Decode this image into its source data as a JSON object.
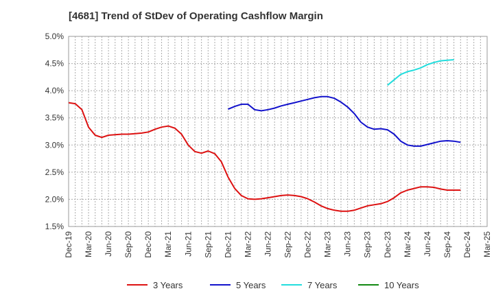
{
  "title": "[4681]  Trend of StDev of Operating Cashflow Margin",
  "chart_data": {
    "type": "line",
    "title": "[4681]  Trend of StDev of Operating Cashflow Margin",
    "xlabel": "",
    "ylabel": "",
    "ylim": [
      1.5,
      5.0
    ],
    "y_ticks": [
      "1.5%",
      "2.0%",
      "2.5%",
      "3.0%",
      "3.5%",
      "4.0%",
      "4.5%",
      "5.0%"
    ],
    "x_ticks": [
      "Dec-19",
      "Mar-20",
      "Jun-20",
      "Sep-20",
      "Dec-20",
      "Mar-21",
      "Jun-21",
      "Sep-21",
      "Dec-21",
      "Mar-22",
      "Jun-22",
      "Sep-22",
      "Dec-22",
      "Mar-23",
      "Jun-23",
      "Sep-23",
      "Dec-23",
      "Mar-24",
      "Jun-24",
      "Sep-24",
      "Dec-24",
      "Mar-25"
    ],
    "x_range_months": [
      "Dec-19",
      "Mar-25"
    ],
    "grid": true,
    "legend_position": "bottom",
    "colors": {
      "3 Years": "#dd1111",
      "5 Years": "#1111cc",
      "7 Years": "#22dddd",
      "10 Years": "#118811"
    },
    "series": [
      {
        "name": "3 Years",
        "color": "#dd1111",
        "start": "Dec-19",
        "values": [
          3.78,
          3.76,
          3.65,
          3.33,
          3.18,
          3.14,
          3.18,
          3.19,
          3.2,
          3.2,
          3.21,
          3.22,
          3.24,
          3.29,
          3.33,
          3.35,
          3.31,
          3.2,
          3.0,
          2.88,
          2.85,
          2.89,
          2.84,
          2.69,
          2.41,
          2.2,
          2.07,
          2.01,
          2.0,
          2.01,
          2.03,
          2.05,
          2.07,
          2.08,
          2.07,
          2.05,
          2.01,
          1.95,
          1.88,
          1.83,
          1.8,
          1.78,
          1.78,
          1.8,
          1.84,
          1.88,
          1.9,
          1.92,
          1.96,
          2.03,
          2.12,
          2.17,
          2.2,
          2.23,
          2.23,
          2.22,
          2.19,
          2.17,
          2.17,
          2.17
        ]
      },
      {
        "name": "5 Years",
        "color": "#1111cc",
        "start": "Dec-21",
        "values": [
          3.66,
          3.71,
          3.75,
          3.75,
          3.65,
          3.63,
          3.65,
          3.68,
          3.72,
          3.75,
          3.78,
          3.81,
          3.84,
          3.87,
          3.89,
          3.89,
          3.86,
          3.79,
          3.7,
          3.58,
          3.42,
          3.33,
          3.29,
          3.3,
          3.28,
          3.2,
          3.07,
          3.0,
          2.98,
          2.98,
          3.01,
          3.04,
          3.07,
          3.08,
          3.07,
          3.05
        ]
      },
      {
        "name": "7 Years",
        "color": "#22dddd",
        "start": "Dec-23",
        "values": [
          4.1,
          4.2,
          4.3,
          4.35,
          4.38,
          4.42,
          4.48,
          4.52,
          4.55,
          4.56,
          4.57
        ]
      },
      {
        "name": "10 Years",
        "color": "#118811",
        "start": "Dec-19",
        "values": []
      }
    ]
  }
}
